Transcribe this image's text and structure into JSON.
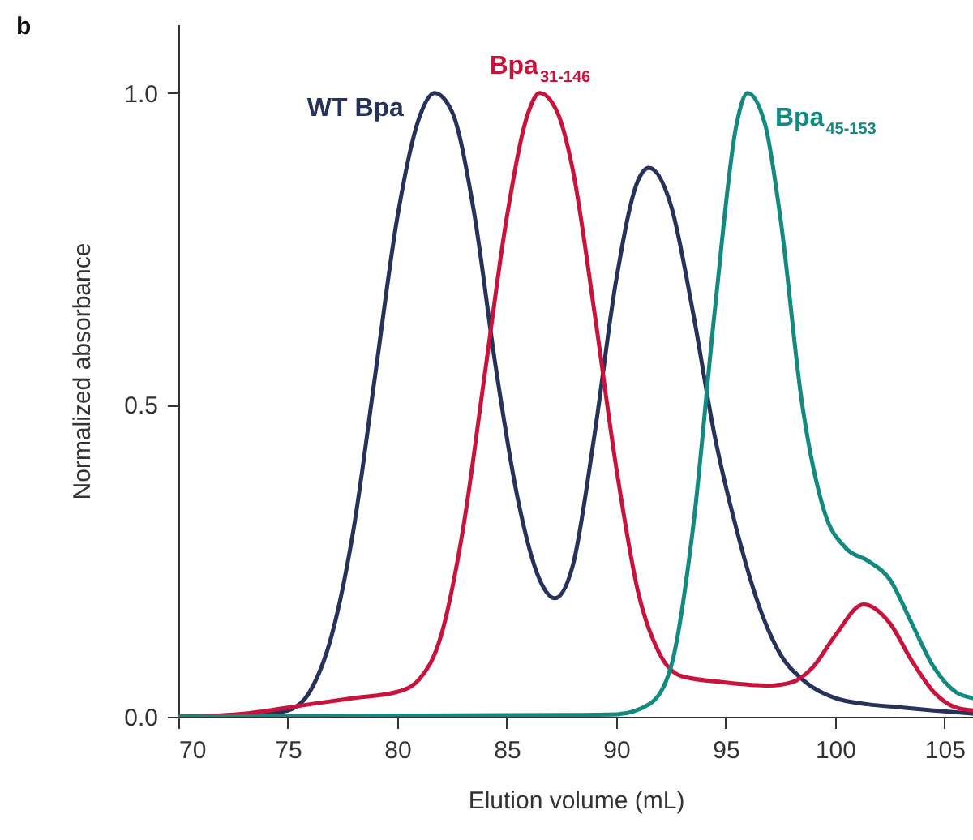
{
  "chart_data": {
    "type": "line",
    "xlabel": "Elution volume (mL)",
    "ylabel": "Normalized absorbance",
    "annotations": [
      "b"
    ],
    "xlim": [
      70,
      106.3
    ],
    "xticks": [
      70,
      75,
      80,
      85,
      90,
      95,
      100,
      105
    ],
    "ylim": [
      0,
      1.11
    ],
    "yticks": [
      {
        "value": 0,
        "label": "0.0"
      },
      {
        "value": 0.5,
        "label": "0.5"
      },
      {
        "value": 1,
        "label": "1.0"
      }
    ],
    "grid": false,
    "line_style": "solid",
    "marker": "none",
    "x": [
      70,
      72,
      74,
      75,
      76,
      77,
      78,
      79,
      80,
      81,
      81.7,
      82.5,
      83.5,
      84.5,
      85.5,
      86.5,
      87.2,
      88,
      89,
      90,
      91,
      91.5,
      92.5,
      93.5,
      94.5,
      95.5,
      96.5,
      97.5,
      98.5,
      100,
      101.5,
      103,
      104.5,
      106.3
    ],
    "series": [
      {
        "name": "WT Bpa",
        "color": "#26325a",
        "values": [
          0,
          0.002,
          0.005,
          0.01,
          0.04,
          0.13,
          0.3,
          0.55,
          0.8,
          0.96,
          1.0,
          0.97,
          0.81,
          0.56,
          0.35,
          0.22,
          0.19,
          0.24,
          0.45,
          0.7,
          0.86,
          0.88,
          0.82,
          0.65,
          0.45,
          0.3,
          0.18,
          0.1,
          0.06,
          0.03,
          0.02,
          0.015,
          0.01,
          0.005
        ]
      },
      {
        "name": "Bpa$_{31-146}$",
        "color": "#c8143c",
        "x": [
          70,
          73,
          76,
          78,
          80,
          81,
          82,
          83,
          84,
          85,
          86,
          86.5,
          87.3,
          88,
          89,
          90,
          91,
          92,
          93,
          95,
          97,
          98,
          99,
          100,
          101.3,
          102.5,
          103.5,
          104.5,
          105.5,
          106.3
        ],
        "values": [
          0,
          0.005,
          0.02,
          0.03,
          0.04,
          0.06,
          0.13,
          0.3,
          0.55,
          0.8,
          0.97,
          1.0,
          0.97,
          0.88,
          0.65,
          0.4,
          0.2,
          0.1,
          0.065,
          0.055,
          0.05,
          0.055,
          0.08,
          0.13,
          0.18,
          0.15,
          0.09,
          0.04,
          0.015,
          0.01
        ]
      },
      {
        "name": "Bpa$_{45-153}$",
        "color": "#138a80",
        "x": [
          70,
          80,
          88,
          90,
          91.5,
          92.5,
          93.5,
          94.5,
          95.5,
          96,
          96.8,
          97.5,
          98.5,
          99.5,
          100.5,
          101.5,
          102.5,
          103.5,
          104.5,
          105.5,
          106.3
        ],
        "values": [
          0,
          0.002,
          0.003,
          0.004,
          0.02,
          0.08,
          0.3,
          0.65,
          0.95,
          1.0,
          0.95,
          0.8,
          0.5,
          0.33,
          0.27,
          0.25,
          0.22,
          0.15,
          0.08,
          0.04,
          0.03
        ]
      }
    ]
  }
}
